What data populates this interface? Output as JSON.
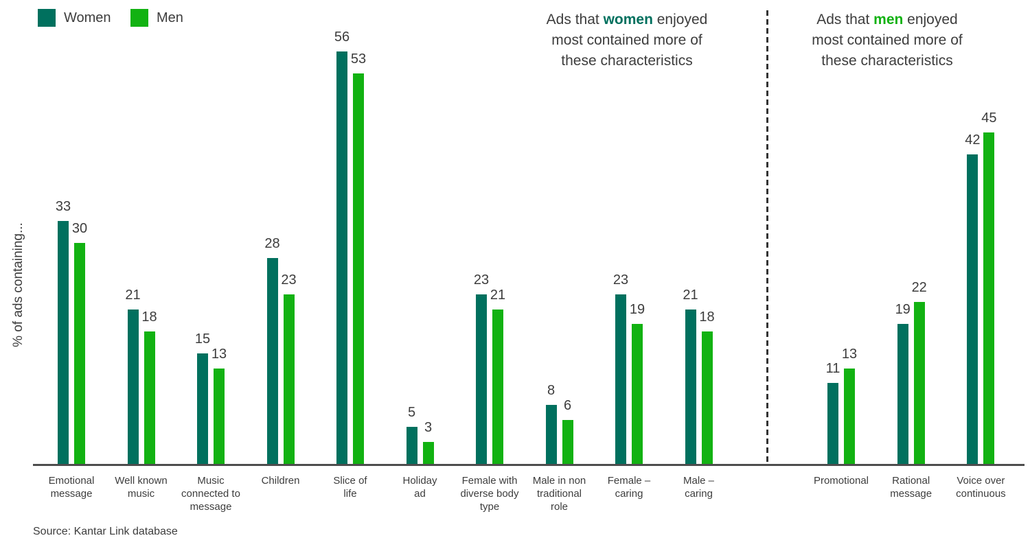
{
  "colors": {
    "women": "#00705e",
    "men": "#12b212",
    "text": "#3d3d3d",
    "axis": "#4d4d4d",
    "separator": "#333333"
  },
  "legend": {
    "items": [
      {
        "label": "Women",
        "color": "#00705e"
      },
      {
        "label": "Men",
        "color": "#12b212"
      }
    ]
  },
  "annotations": {
    "women": {
      "line1_pre": "Ads that ",
      "highlight": "women",
      "line1_post": " enjoyed",
      "line2": "most contained more of",
      "line3": "these characteristics"
    },
    "men": {
      "line1_pre": "Ads that ",
      "highlight": "men",
      "line1_post": " enjoyed",
      "line2": "most contained more of",
      "line3": "these characteristics"
    }
  },
  "source": "Source: Kantar Link database",
  "chart_data": {
    "type": "bar",
    "title": "",
    "xlabel": "",
    "ylabel": "% of ads containing...",
    "ylim": [
      0,
      60
    ],
    "grid": false,
    "legend_position": "top-left",
    "value_labels": true,
    "categories": [
      "Emotional message",
      "Well known music",
      "Music connected to message",
      "Children",
      "Slice of life",
      "Holiday ad",
      "Female with diverse body type",
      "Male in non traditional role",
      "Female – caring",
      "Male – caring",
      "Promotional",
      "Rational message",
      "Voice over continuous"
    ],
    "category_lines": [
      [
        "Emotional",
        "message"
      ],
      [
        "Well known",
        "music"
      ],
      [
        "Music",
        "connected to",
        "message"
      ],
      [
        "Children"
      ],
      [
        "Slice of",
        "life"
      ],
      [
        "Holiday",
        "ad"
      ],
      [
        "Female with",
        "diverse body",
        "type"
      ],
      [
        "Male in non",
        "traditional",
        "role"
      ],
      [
        "Female –",
        "caring"
      ],
      [
        "Male –",
        "caring"
      ],
      [
        "Promotional"
      ],
      [
        "Rational",
        "message"
      ],
      [
        "Voice over",
        "continuous"
      ]
    ],
    "series": [
      {
        "name": "Women",
        "color": "#00705e",
        "values": [
          33,
          21,
          15,
          28,
          56,
          5,
          23,
          8,
          23,
          21,
          11,
          19,
          42
        ]
      },
      {
        "name": "Men",
        "color": "#12b212",
        "values": [
          30,
          18,
          13,
          23,
          53,
          3,
          21,
          6,
          19,
          18,
          13,
          22,
          45
        ]
      }
    ],
    "sections": [
      {
        "name": "Ads that women enjoyed most contained more of these characteristics",
        "category_indices": [
          0,
          1,
          2,
          3,
          4,
          5,
          6,
          7,
          8,
          9
        ]
      },
      {
        "name": "Ads that men enjoyed most contained more of these characteristics",
        "category_indices": [
          10,
          11,
          12
        ]
      }
    ]
  }
}
